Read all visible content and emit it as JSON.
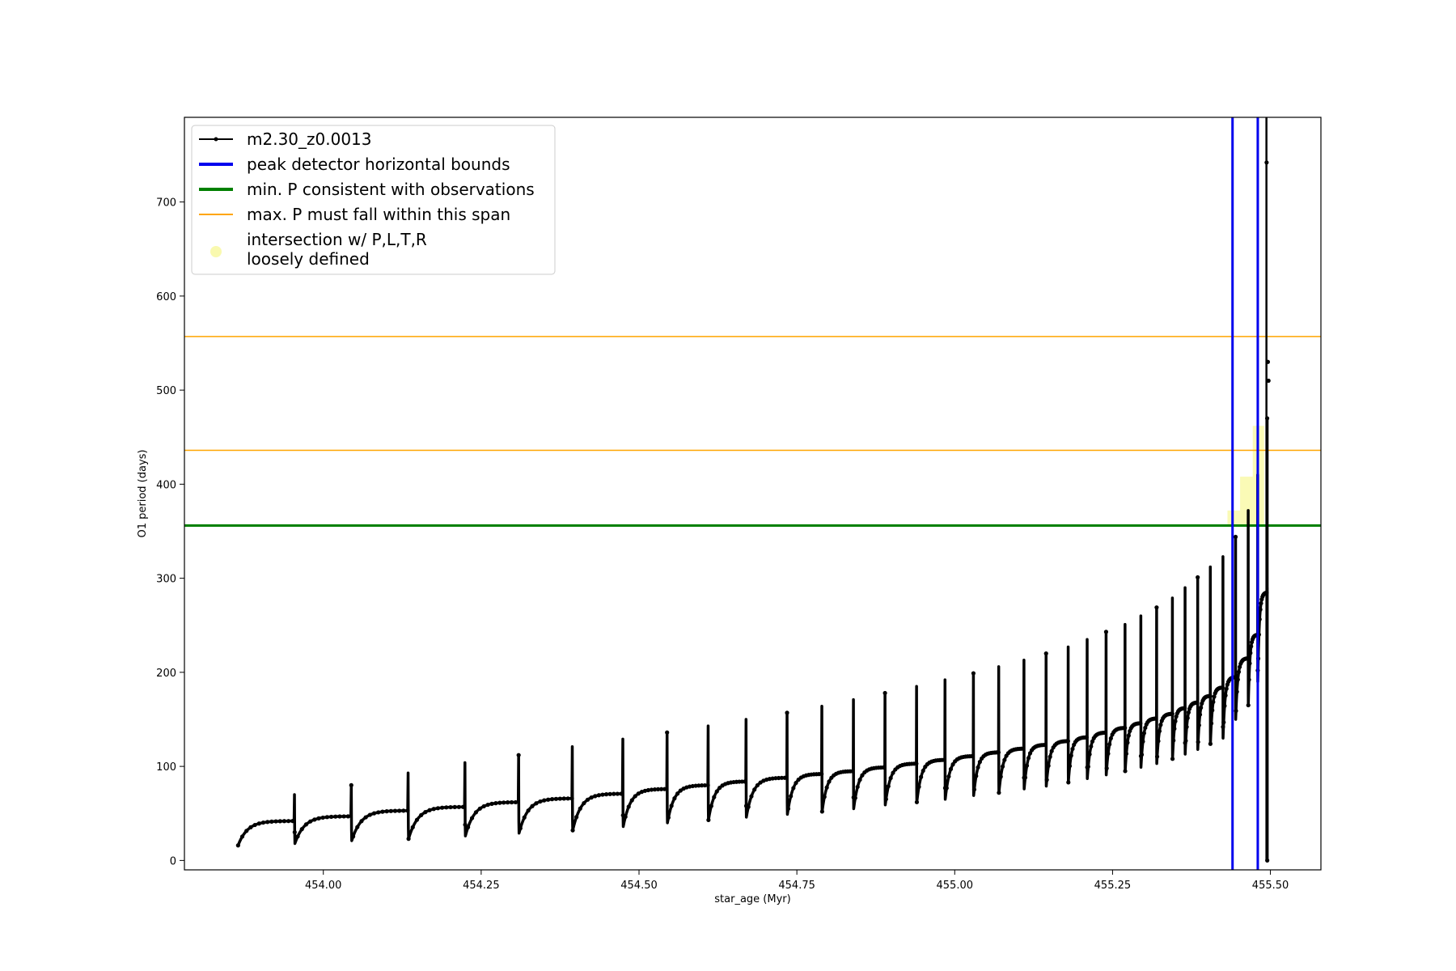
{
  "chart_data": {
    "type": "line",
    "title": "",
    "xlabel": "star_age (Myr)",
    "ylabel": "O1 period (days)",
    "xlim": [
      453.78,
      455.58
    ],
    "ylim": [
      -10,
      790
    ],
    "x_ticks": [
      454.0,
      454.25,
      454.5,
      454.75,
      455.0,
      455.25,
      455.5
    ],
    "x_tick_labels": [
      "454.00",
      "454.25",
      "454.50",
      "454.75",
      "455.00",
      "455.25",
      "455.50"
    ],
    "y_ticks": [
      0,
      100,
      200,
      300,
      400,
      500,
      600,
      700
    ],
    "y_tick_labels": [
      "0",
      "100",
      "200",
      "300",
      "400",
      "500",
      "600",
      "700"
    ],
    "grid": false,
    "legend_placement": "top-left",
    "series": [
      {
        "name": "m2.30_z0.0013",
        "color": "#000000",
        "style": "line-with-dots",
        "pulses": [
          {
            "x": 453.865,
            "base": 16,
            "top": 42,
            "spike": 70
          },
          {
            "x": 453.955,
            "base": 18,
            "top": 47,
            "spike": 80
          },
          {
            "x": 454.045,
            "base": 21,
            "top": 53,
            "spike": 93
          },
          {
            "x": 454.135,
            "base": 23,
            "top": 57,
            "spike": 104
          },
          {
            "x": 454.225,
            "base": 26,
            "top": 62,
            "spike": 112
          },
          {
            "x": 454.31,
            "base": 29,
            "top": 66,
            "spike": 121
          },
          {
            "x": 454.395,
            "base": 32,
            "top": 71,
            "spike": 129
          },
          {
            "x": 454.475,
            "base": 36,
            "top": 76,
            "spike": 136
          },
          {
            "x": 454.545,
            "base": 40,
            "top": 80,
            "spike": 143
          },
          {
            "x": 454.61,
            "base": 43,
            "top": 84,
            "spike": 150
          },
          {
            "x": 454.67,
            "base": 46,
            "top": 88,
            "spike": 157
          },
          {
            "x": 454.735,
            "base": 49,
            "top": 92,
            "spike": 164
          },
          {
            "x": 454.79,
            "base": 52,
            "top": 95,
            "spike": 171
          },
          {
            "x": 454.84,
            "base": 55,
            "top": 99,
            "spike": 178
          },
          {
            "x": 454.89,
            "base": 59,
            "top": 103,
            "spike": 185
          },
          {
            "x": 454.94,
            "base": 62,
            "top": 107,
            "spike": 192
          },
          {
            "x": 454.985,
            "base": 65,
            "top": 111,
            "spike": 199
          },
          {
            "x": 455.03,
            "base": 69,
            "top": 115,
            "spike": 206
          },
          {
            "x": 455.07,
            "base": 72,
            "top": 119,
            "spike": 213
          },
          {
            "x": 455.11,
            "base": 76,
            "top": 123,
            "spike": 220
          },
          {
            "x": 455.145,
            "base": 79,
            "top": 127,
            "spike": 227
          },
          {
            "x": 455.18,
            "base": 83,
            "top": 131,
            "spike": 235
          },
          {
            "x": 455.21,
            "base": 87,
            "top": 136,
            "spike": 243
          },
          {
            "x": 455.24,
            "base": 91,
            "top": 141,
            "spike": 251
          },
          {
            "x": 455.27,
            "base": 95,
            "top": 146,
            "spike": 260
          },
          {
            "x": 455.295,
            "base": 99,
            "top": 151,
            "spike": 269
          },
          {
            "x": 455.32,
            "base": 103,
            "top": 156,
            "spike": 279
          },
          {
            "x": 455.345,
            "base": 108,
            "top": 162,
            "spike": 290
          },
          {
            "x": 455.365,
            "base": 113,
            "top": 168,
            "spike": 301
          },
          {
            "x": 455.385,
            "base": 118,
            "top": 175,
            "spike": 312
          },
          {
            "x": 455.405,
            "base": 124,
            "top": 184,
            "spike": 323
          },
          {
            "x": 455.425,
            "base": 130,
            "top": 195,
            "spike": 344
          },
          {
            "x": 455.445,
            "base": 150,
            "top": 215,
            "spike": 372
          },
          {
            "x": 455.465,
            "base": 165,
            "top": 240,
            "spike": 410
          },
          {
            "x": 455.48,
            "base": 190,
            "top": 285,
            "spike": 470
          }
        ],
        "final_drop": {
          "x": 455.495,
          "from": 290,
          "to": 0
        },
        "outlier_points": [
          [
            455.494,
            742
          ],
          [
            455.496,
            530
          ],
          [
            455.497,
            510
          ]
        ]
      }
    ],
    "reference_lines": [
      {
        "name": "peak detector horizontal bounds",
        "orientation": "vertical",
        "values": [
          455.44,
          455.48
        ],
        "color": "#0000ee",
        "width": 3
      },
      {
        "name": "min. P consistent with observations",
        "orientation": "horizontal",
        "values": [
          356
        ],
        "color": "#008000",
        "width": 3
      },
      {
        "name": "max. P must fall within this span",
        "orientation": "horizontal",
        "values": [
          436,
          557
        ],
        "color": "#ffa500",
        "width": 1.5
      }
    ],
    "highlight": {
      "name_lines": [
        "intersection w/ P,L,T,R",
        "loosely defined"
      ],
      "color": "#f5f57a",
      "boxes": [
        {
          "x0": 455.432,
          "x1": 455.452,
          "y0": 355,
          "y1": 372
        },
        {
          "x0": 455.452,
          "x1": 455.472,
          "y0": 355,
          "y1": 408
        },
        {
          "x0": 455.472,
          "x1": 455.49,
          "y0": 355,
          "y1": 462
        }
      ]
    }
  }
}
